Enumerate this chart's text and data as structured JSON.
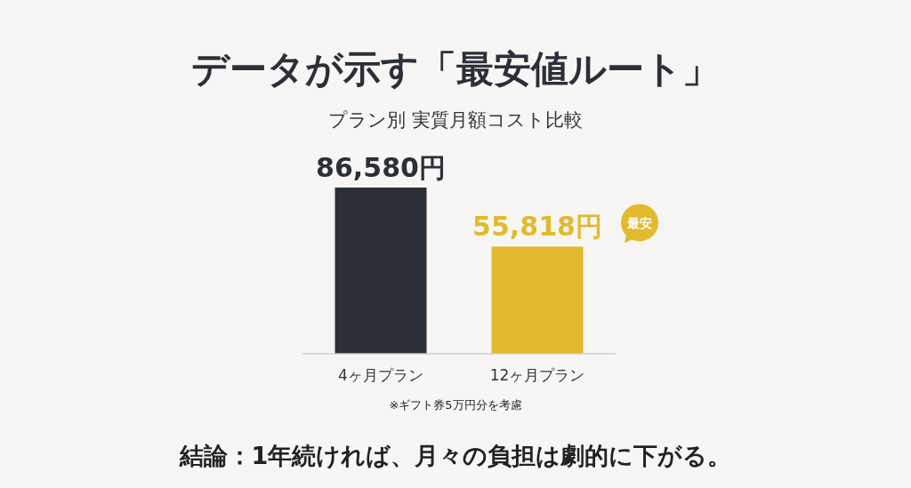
{
  "chart_data": {
    "type": "bar",
    "title": "データが示す「最安値ルート」",
    "subtitle": "プラン別 実質月額コスト比較",
    "categories": [
      "4ヶ月プラン",
      "12ヶ月プラン"
    ],
    "values": [
      86580,
      55818
    ],
    "colors": [
      "#2b2f38",
      "#e2ba2e"
    ],
    "value_labels": [
      "86,580円",
      "55,818円"
    ],
    "annotations": [
      "最安",
      "※ギフト券5万円分を考慮",
      "結論：1年続ければ、月々の負担は劇的に下がる。"
    ]
  }
}
